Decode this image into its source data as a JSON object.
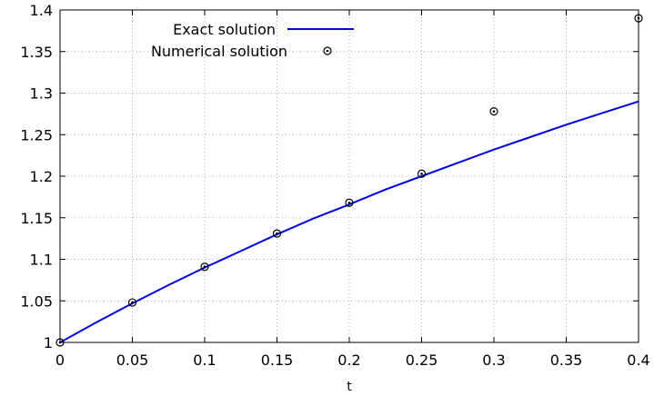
{
  "chart_data": {
    "type": "line",
    "title": "",
    "xlabel": "t",
    "ylabel": "",
    "xlim": [
      0,
      0.4
    ],
    "ylim": [
      1,
      1.4
    ],
    "grid": true,
    "legend_position": "top-left",
    "x_ticks": [
      "0",
      "0.05",
      "0.1",
      "0.15",
      "0.2",
      "0.25",
      "0.3",
      "0.35",
      "0.4"
    ],
    "y_ticks": [
      "1",
      "1.05",
      "1.1",
      "1.15",
      "1.2",
      "1.25",
      "1.3",
      "1.35",
      "1.4"
    ],
    "series": [
      {
        "name": "Exact solution",
        "style": "line",
        "color": "#0000dd",
        "x": [
          0,
          0.025,
          0.05,
          0.075,
          0.1,
          0.125,
          0.15,
          0.175,
          0.2,
          0.225,
          0.25,
          0.275,
          0.3,
          0.325,
          0.35,
          0.375,
          0.4
        ],
        "y": [
          1,
          1.024,
          1.047,
          1.069,
          1.09,
          1.11,
          1.13,
          1.149,
          1.166,
          1.184,
          1.2,
          1.216,
          1.232,
          1.247,
          1.262,
          1.276,
          1.29
        ]
      },
      {
        "name": "Numerical solution",
        "style": "markers",
        "color": "#000000",
        "x": [
          0,
          0.05,
          0.1,
          0.15,
          0.2,
          0.25,
          0.3,
          0.4
        ],
        "y": [
          1,
          1.048,
          1.091,
          1.131,
          1.168,
          1.203,
          1.278,
          1.39
        ]
      }
    ]
  }
}
